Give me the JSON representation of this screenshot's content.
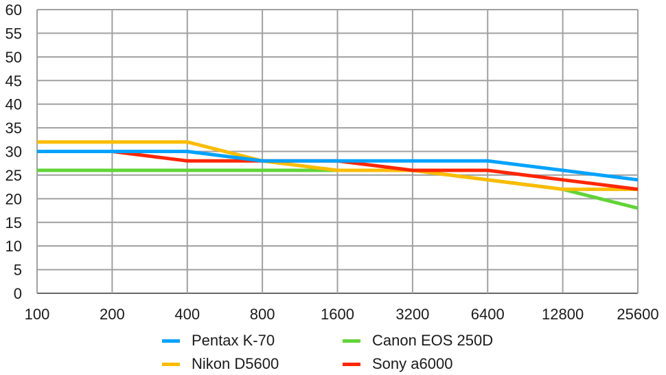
{
  "chart_data": {
    "type": "line",
    "title": "",
    "xlabel": "",
    "ylabel": "",
    "x": [
      "100",
      "200",
      "400",
      "800",
      "1600",
      "3200",
      "6400",
      "12800",
      "25600"
    ],
    "ylim": [
      0,
      60
    ],
    "yticks": [
      "0",
      "5",
      "10",
      "15",
      "20",
      "25",
      "30",
      "35",
      "40",
      "45",
      "50",
      "55",
      "60"
    ],
    "grid": true,
    "legend_position": "bottom",
    "series": [
      {
        "name": "Pentax K-70",
        "color": "#00a2ff",
        "values": [
          30,
          30,
          30,
          28,
          28,
          28,
          28,
          26,
          24
        ]
      },
      {
        "name": "Nikon D5600",
        "color": "#fbbc00",
        "values": [
          32,
          32,
          32,
          28,
          26,
          26,
          24,
          22,
          22
        ]
      },
      {
        "name": "Canon EOS 250D",
        "color": "#62d437",
        "values": [
          26,
          26,
          26,
          26,
          26,
          26,
          24,
          22,
          18
        ]
      },
      {
        "name": "Sony a6000",
        "color": "#ff2600",
        "values": [
          30,
          30,
          28,
          28,
          28,
          26,
          26,
          24,
          22
        ]
      }
    ]
  }
}
